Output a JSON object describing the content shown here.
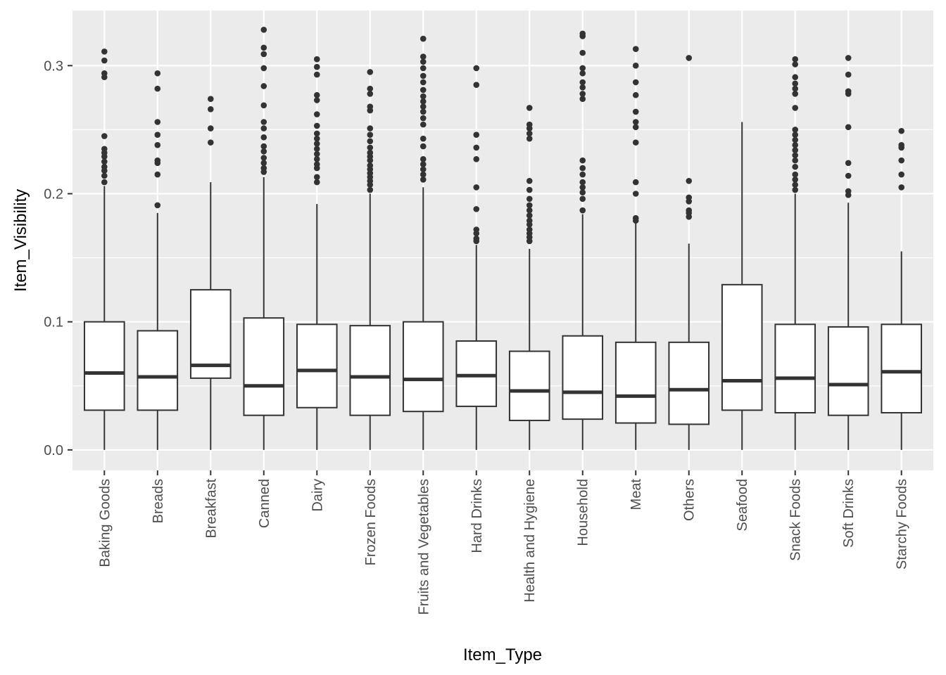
{
  "chart_data": {
    "type": "boxplot",
    "xlabel": "Item_Type",
    "ylabel": "Item_Visibility",
    "y_ticks": [
      0.0,
      0.1,
      0.2,
      0.3
    ],
    "y_tick_labels": [
      "0.0",
      "0.1",
      "0.2",
      "0.3"
    ],
    "ylim": [
      -0.016,
      0.343
    ],
    "grid": true,
    "colors": {
      "panel": "#ebebeb",
      "grid": "#ffffff",
      "box_fill": "#ffffff",
      "stroke": "#333333",
      "outlier": "#333333",
      "tick_text": "#4d4d4d"
    },
    "categories": [
      {
        "name": "Baking Goods",
        "q1": 0.031,
        "median": 0.06,
        "q3": 0.1,
        "whisker_low": 0.0,
        "whisker_high": 0.206,
        "outliers": [
          0.311,
          0.304,
          0.294,
          0.291,
          0.245,
          0.235,
          0.232,
          0.229,
          0.225,
          0.221,
          0.218,
          0.214,
          0.209
        ]
      },
      {
        "name": "Breads",
        "q1": 0.031,
        "median": 0.057,
        "q3": 0.093,
        "whisker_low": 0.0,
        "whisker_high": 0.185,
        "outliers": [
          0.294,
          0.282,
          0.256,
          0.246,
          0.238,
          0.226,
          0.224,
          0.215,
          0.191
        ]
      },
      {
        "name": "Breakfast",
        "q1": 0.056,
        "median": 0.066,
        "q3": 0.125,
        "whisker_low": 0.0,
        "whisker_high": 0.209,
        "outliers": [
          0.274,
          0.266,
          0.251,
          0.24
        ]
      },
      {
        "name": "Canned",
        "q1": 0.027,
        "median": 0.05,
        "q3": 0.103,
        "whisker_low": 0.0,
        "whisker_high": 0.213,
        "outliers": [
          0.328,
          0.314,
          0.309,
          0.298,
          0.284,
          0.269,
          0.256,
          0.251,
          0.244,
          0.237,
          0.233,
          0.228,
          0.224,
          0.22,
          0.217
        ]
      },
      {
        "name": "Dairy",
        "q1": 0.033,
        "median": 0.062,
        "q3": 0.098,
        "whisker_low": 0.0,
        "whisker_high": 0.192,
        "outliers": [
          0.305,
          0.299,
          0.293,
          0.277,
          0.273,
          0.262,
          0.253,
          0.247,
          0.243,
          0.239,
          0.235,
          0.231,
          0.227,
          0.223,
          0.22,
          0.213,
          0.209
        ]
      },
      {
        "name": "Frozen Foods",
        "q1": 0.027,
        "median": 0.057,
        "q3": 0.097,
        "whisker_low": 0.0,
        "whisker_high": 0.2,
        "outliers": [
          0.295,
          0.282,
          0.278,
          0.268,
          0.265,
          0.251,
          0.246,
          0.241,
          0.236,
          0.232,
          0.229,
          0.226,
          0.222,
          0.219,
          0.216,
          0.213,
          0.21,
          0.207,
          0.203
        ]
      },
      {
        "name": "Fruits and Vegetables",
        "q1": 0.03,
        "median": 0.055,
        "q3": 0.1,
        "whisker_low": 0.0,
        "whisker_high": 0.205,
        "outliers": [
          0.321,
          0.307,
          0.303,
          0.298,
          0.292,
          0.287,
          0.281,
          0.276,
          0.272,
          0.268,
          0.264,
          0.259,
          0.254,
          0.243,
          0.237,
          0.227,
          0.223,
          0.219,
          0.215,
          0.211
        ]
      },
      {
        "name": "Hard Drinks",
        "q1": 0.034,
        "median": 0.058,
        "q3": 0.085,
        "whisker_low": 0.0,
        "whisker_high": 0.16,
        "outliers": [
          0.298,
          0.285,
          0.246,
          0.236,
          0.227,
          0.205,
          0.188,
          0.172,
          0.169,
          0.165,
          0.163
        ]
      },
      {
        "name": "Health and Hygiene",
        "q1": 0.023,
        "median": 0.046,
        "q3": 0.077,
        "whisker_low": 0.0,
        "whisker_high": 0.157,
        "outliers": [
          0.267,
          0.254,
          0.251,
          0.247,
          0.243,
          0.21,
          0.203,
          0.196,
          0.191,
          0.187,
          0.183,
          0.179,
          0.176,
          0.172,
          0.169,
          0.166,
          0.163
        ]
      },
      {
        "name": "Household",
        "q1": 0.024,
        "median": 0.045,
        "q3": 0.089,
        "whisker_low": 0.0,
        "whisker_high": 0.184,
        "outliers": [
          0.325,
          0.323,
          0.31,
          0.298,
          0.294,
          0.287,
          0.283,
          0.278,
          0.274,
          0.226,
          0.22,
          0.215,
          0.209,
          0.205,
          0.201,
          0.196,
          0.187
        ]
      },
      {
        "name": "Meat",
        "q1": 0.021,
        "median": 0.042,
        "q3": 0.084,
        "whisker_low": 0.0,
        "whisker_high": 0.178,
        "outliers": [
          0.313,
          0.3,
          0.287,
          0.277,
          0.264,
          0.256,
          0.252,
          0.24,
          0.209,
          0.2,
          0.181,
          0.179
        ]
      },
      {
        "name": "Others",
        "q1": 0.02,
        "median": 0.047,
        "q3": 0.084,
        "whisker_low": 0.0,
        "whisker_high": 0.161,
        "outliers": [
          0.306,
          0.21,
          0.197,
          0.194,
          0.187,
          0.185,
          0.182
        ]
      },
      {
        "name": "Seafood",
        "q1": 0.031,
        "median": 0.054,
        "q3": 0.129,
        "whisker_low": 0.0,
        "whisker_high": 0.256,
        "outliers": []
      },
      {
        "name": "Snack Foods",
        "q1": 0.029,
        "median": 0.056,
        "q3": 0.098,
        "whisker_low": 0.0,
        "whisker_high": 0.2,
        "outliers": [
          0.305,
          0.301,
          0.291,
          0.286,
          0.282,
          0.278,
          0.267,
          0.25,
          0.246,
          0.242,
          0.238,
          0.234,
          0.23,
          0.226,
          0.221,
          0.215,
          0.211,
          0.207,
          0.203
        ]
      },
      {
        "name": "Soft Drinks",
        "q1": 0.027,
        "median": 0.051,
        "q3": 0.096,
        "whisker_low": 0.0,
        "whisker_high": 0.193,
        "outliers": [
          0.306,
          0.293,
          0.28,
          0.278,
          0.252,
          0.224,
          0.214,
          0.202,
          0.199
        ]
      },
      {
        "name": "Starchy Foods",
        "q1": 0.029,
        "median": 0.061,
        "q3": 0.098,
        "whisker_low": 0.0,
        "whisker_high": 0.155,
        "outliers": [
          0.249,
          0.238,
          0.236,
          0.226,
          0.215,
          0.205
        ]
      }
    ]
  }
}
